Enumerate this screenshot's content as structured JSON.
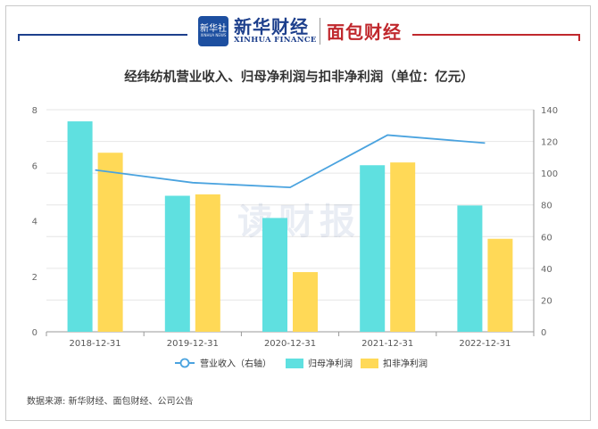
{
  "header": {
    "xinhua_box_text": "新华社",
    "xinhua_box_sub": "XINHUA NEWS",
    "xinhua_cn": "新华财经",
    "xinhua_en": "XINHUA FINANCE",
    "mianbao": "面包财经"
  },
  "watermark": "读财报",
  "source": "数据来源: 新华财经、面包财经、公司公告",
  "colors": {
    "revenue_line": "#4aa3df",
    "net_profit_bar": "#5fe0e0",
    "deducted_profit_bar": "#ffd957",
    "brand_blue": "#1d3f8c",
    "brand_red": "#c0282d"
  },
  "chart_data": {
    "type": "bar",
    "title": "经纬纺机营业收入、归母净利润与扣非净利润（单位：亿元）",
    "categories": [
      "2018-12-31",
      "2019-12-31",
      "2020-12-31",
      "2021-12-31",
      "2022-12-31"
    ],
    "ylim": [
      0,
      8
    ],
    "yticks": [
      "0",
      "2",
      "4",
      "6",
      "8"
    ],
    "y2lim": [
      0,
      140
    ],
    "y2ticks": [
      "0",
      "20",
      "40",
      "60",
      "80",
      "100",
      "120",
      "140"
    ],
    "grid": true,
    "legend_position": "bottom",
    "series": [
      {
        "name": "营业收入（右轴）",
        "kind": "line",
        "axis": "right",
        "values": [
          102,
          94,
          91,
          124,
          119
        ]
      },
      {
        "name": "归母净利润",
        "kind": "bar",
        "axis": "left",
        "values": [
          7.58,
          4.9,
          4.1,
          6.0,
          4.55
        ]
      },
      {
        "name": "扣非净利润",
        "kind": "bar",
        "axis": "left",
        "values": [
          6.45,
          4.95,
          2.15,
          6.1,
          3.35
        ]
      }
    ]
  }
}
